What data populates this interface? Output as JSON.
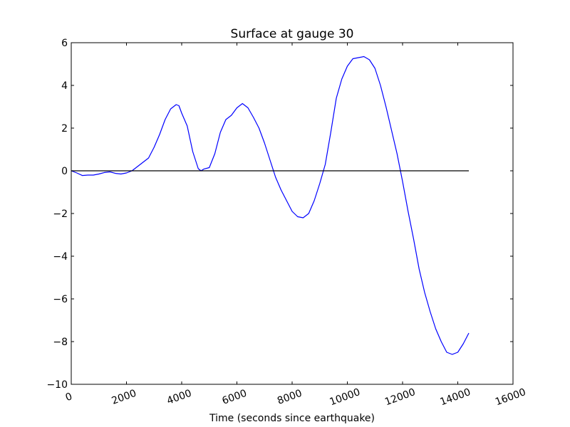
{
  "chart_data": {
    "type": "line",
    "title": "Surface at gauge 30",
    "xlabel": "Time (seconds since earthquake)",
    "ylabel": "",
    "xlim": [
      0,
      16000
    ],
    "ylim": [
      -10,
      6
    ],
    "x_ticks": [
      0,
      2000,
      4000,
      6000,
      8000,
      10000,
      12000,
      14000,
      16000
    ],
    "y_ticks": [
      -10,
      -8,
      -6,
      -4,
      -2,
      0,
      2,
      4,
      6
    ],
    "x_tick_labels": [
      "0",
      "2000",
      "4000",
      "6000",
      "8000",
      "10000",
      "12000",
      "14000",
      "16000"
    ],
    "y_tick_labels": [
      "−10",
      "−8",
      "−6",
      "−4",
      "−2",
      "0",
      "2",
      "4",
      "6"
    ],
    "grid": false,
    "legend": "none",
    "series": [
      {
        "color": "#0000ff",
        "x": [
          0,
          200,
          400,
          600,
          800,
          1000,
          1200,
          1400,
          1600,
          1800,
          2000,
          2200,
          2400,
          2600,
          2800,
          3000,
          3200,
          3400,
          3600,
          3800,
          3900,
          4000,
          4200,
          4400,
          4600,
          4700,
          4800,
          5000,
          5200,
          5400,
          5600,
          5800,
          6000,
          6200,
          6400,
          6600,
          6800,
          7000,
          7200,
          7400,
          7600,
          7800,
          8000,
          8200,
          8400,
          8600,
          8800,
          9000,
          9200,
          9400,
          9600,
          9800,
          10000,
          10200,
          10400,
          10600,
          10800,
          11000,
          11200,
          11400,
          11600,
          11800,
          12000,
          12200,
          12400,
          12600,
          12800,
          13000,
          13200,
          13400,
          13600,
          13800,
          14000,
          14200,
          14400
        ],
        "y": [
          0,
          -0.1,
          -0.22,
          -0.2,
          -0.2,
          -0.15,
          -0.08,
          -0.05,
          -0.12,
          -0.15,
          -0.1,
          0,
          0.2,
          0.4,
          0.6,
          1.1,
          1.7,
          2.4,
          2.9,
          3.1,
          3.05,
          2.7,
          2.1,
          0.9,
          0.1,
          0.0,
          0.08,
          0.15,
          0.8,
          1.8,
          2.4,
          2.6,
          2.95,
          3.15,
          2.95,
          2.5,
          2.0,
          1.3,
          0.5,
          -0.3,
          -0.9,
          -1.4,
          -1.9,
          -2.15,
          -2.2,
          -2.0,
          -1.4,
          -0.6,
          0.3,
          1.8,
          3.4,
          4.3,
          4.9,
          5.25,
          5.3,
          5.35,
          5.2,
          4.8,
          4.0,
          3.0,
          1.9,
          0.8,
          -0.5,
          -1.9,
          -3.2,
          -4.6,
          -5.7,
          -6.6,
          -7.4,
          -8.0,
          -8.5,
          -8.6,
          -8.5,
          -8.1,
          -7.6
        ]
      },
      {
        "color": "#000000",
        "x": [
          0,
          14400
        ],
        "y": [
          0,
          0
        ]
      }
    ]
  }
}
